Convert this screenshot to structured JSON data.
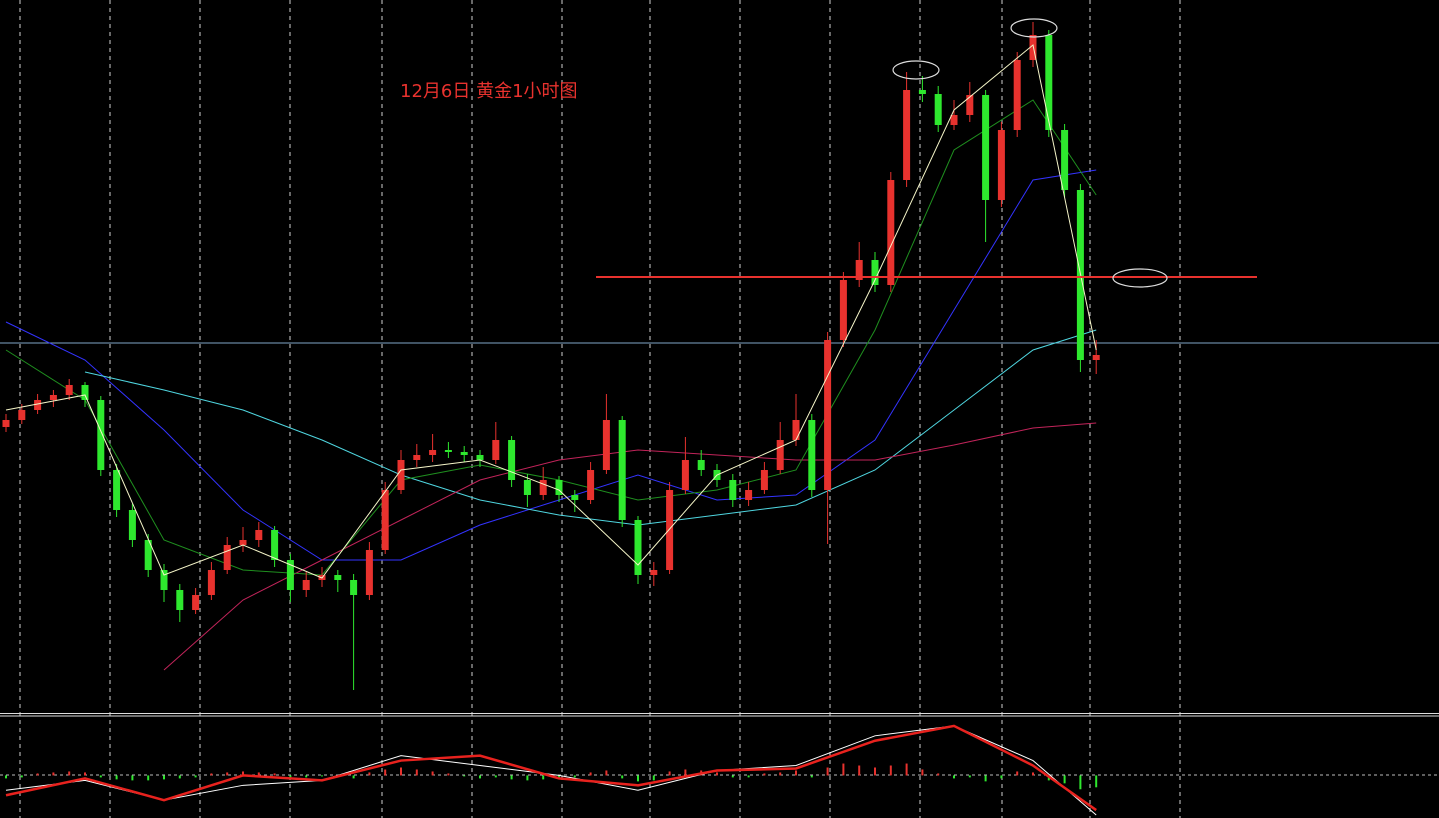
{
  "chart_data": {
    "type": "candlestick",
    "title": "12月6日 黄金1小时图",
    "title_color": "#e8322e",
    "ylim": [
      0,
      712
    ],
    "up_color": "#e8322e",
    "down_color": "#2ee82e",
    "ohlc": [
      [
        285,
        298,
        280,
        292
      ],
      [
        292,
        308,
        288,
        302
      ],
      [
        302,
        318,
        298,
        312
      ],
      [
        312,
        322,
        305,
        317
      ],
      [
        317,
        333,
        312,
        327
      ],
      [
        327,
        330,
        305,
        312
      ],
      [
        312,
        316,
        236,
        242
      ],
      [
        242,
        248,
        195,
        202
      ],
      [
        202,
        208,
        165,
        172
      ],
      [
        172,
        178,
        135,
        142
      ],
      [
        142,
        148,
        110,
        122
      ],
      [
        122,
        128,
        90,
        102
      ],
      [
        102,
        124,
        98,
        117
      ],
      [
        117,
        150,
        112,
        142
      ],
      [
        142,
        175,
        138,
        167
      ],
      [
        167,
        185,
        160,
        172
      ],
      [
        172,
        190,
        165,
        182
      ],
      [
        182,
        186,
        145,
        152
      ],
      [
        152,
        158,
        110,
        122
      ],
      [
        122,
        140,
        115,
        132
      ],
      [
        132,
        145,
        125,
        137
      ],
      [
        137,
        142,
        120,
        132
      ],
      [
        132,
        138,
        22,
        117
      ],
      [
        117,
        170,
        112,
        162
      ],
      [
        162,
        230,
        158,
        222
      ],
      [
        222,
        262,
        218,
        252
      ],
      [
        252,
        268,
        245,
        257
      ],
      [
        257,
        278,
        250,
        262
      ],
      [
        262,
        270,
        254,
        260
      ],
      [
        260,
        266,
        250,
        257
      ],
      [
        257,
        262,
        245,
        252
      ],
      [
        252,
        290,
        248,
        272
      ],
      [
        272,
        276,
        225,
        232
      ],
      [
        232,
        238,
        205,
        217
      ],
      [
        217,
        245,
        212,
        232
      ],
      [
        232,
        236,
        210,
        217
      ],
      [
        217,
        222,
        200,
        212
      ],
      [
        212,
        250,
        208,
        242
      ],
      [
        242,
        318,
        238,
        292
      ],
      [
        292,
        296,
        185,
        192
      ],
      [
        192,
        196,
        128,
        137
      ],
      [
        137,
        150,
        126,
        142
      ],
      [
        142,
        230,
        138,
        222
      ],
      [
        222,
        275,
        218,
        252
      ],
      [
        252,
        262,
        236,
        242
      ],
      [
        242,
        248,
        225,
        232
      ],
      [
        232,
        238,
        205,
        212
      ],
      [
        212,
        230,
        206,
        222
      ],
      [
        222,
        250,
        218,
        242
      ],
      [
        242,
        290,
        238,
        272
      ],
      [
        272,
        318,
        266,
        292
      ],
      [
        292,
        298,
        215,
        222
      ],
      [
        222,
        380,
        168,
        372
      ],
      [
        372,
        440,
        365,
        432
      ],
      [
        432,
        470,
        425,
        452
      ],
      [
        452,
        460,
        420,
        427
      ],
      [
        427,
        540,
        420,
        532
      ],
      [
        532,
        640,
        525,
        622
      ],
      [
        622,
        636,
        610,
        618
      ],
      [
        618,
        626,
        580,
        587
      ],
      [
        587,
        612,
        582,
        597
      ],
      [
        597,
        630,
        590,
        617
      ],
      [
        617,
        622,
        470,
        512
      ],
      [
        512,
        590,
        505,
        582
      ],
      [
        582,
        660,
        575,
        652
      ],
      [
        652,
        690,
        645,
        677
      ],
      [
        677,
        682,
        575,
        582
      ],
      [
        582,
        588,
        515,
        522
      ],
      [
        522,
        528,
        340,
        352
      ],
      [
        352,
        372,
        338,
        357
      ]
    ],
    "ma_x": [
      0,
      5,
      10,
      15,
      20,
      25,
      30,
      35,
      40,
      45,
      50,
      55,
      60,
      65,
      69
    ],
    "moving_averages": [
      {
        "color": "#3333ff",
        "values": [
          390,
          352,
          282,
          202,
          152,
          152,
          187,
          212,
          237,
          212,
          217,
          272,
          402,
          532,
          542
        ]
      },
      {
        "color": "#4fd6e0",
        "values": [
          null,
          340,
          322,
          302,
          272,
          237,
          212,
          197,
          187,
          197,
          207,
          242,
          302,
          362,
          382
        ]
      },
      {
        "color": "#c2245a",
        "values": [
          null,
          null,
          42,
          112,
          152,
          192,
          232,
          252,
          262,
          257,
          252,
          252,
          267,
          284,
          289
        ]
      },
      {
        "color": "#1f8f1f",
        "values": [
          362,
          312,
          172,
          142,
          137,
          232,
          247,
          232,
          212,
          222,
          242,
          382,
          562,
          612,
          517
        ]
      },
      {
        "color": "#f5f5c8",
        "values": [
          302,
          317,
          137,
          167,
          134,
          242,
          252,
          222,
          147,
          237,
          272,
          432,
          602,
          667,
          362
        ]
      }
    ],
    "level_line": {
      "value": 435,
      "color": "#e8322e"
    },
    "price_line": {
      "value": 369,
      "color": "#7fa6c8"
    },
    "macd": {
      "ylim": [
        -43,
        60
      ],
      "macd_line": {
        "color": "#ffffff",
        "values": [
          -15,
          -5,
          -25,
          -10,
          -5,
          20,
          10,
          0,
          -15,
          5,
          10,
          40,
          50,
          15,
          -40
        ]
      },
      "signal_line": {
        "color": "#e8221e",
        "values": [
          -20,
          -3,
          -25,
          0,
          -5,
          15,
          20,
          -3,
          -10,
          5,
          7,
          35,
          50,
          10,
          -35
        ]
      },
      "histogram": [
        -3,
        -2,
        2,
        3,
        4,
        3,
        -2,
        -4,
        -5,
        -5,
        -4,
        -3,
        -2,
        2,
        3,
        4,
        3,
        2,
        -2,
        -2,
        -1,
        -2,
        -3,
        3,
        6,
        8,
        6,
        4,
        2,
        -1,
        -3,
        -2,
        -4,
        -5,
        -4,
        -3,
        -2,
        3,
        5,
        -3,
        -6,
        -5,
        4,
        6,
        5,
        3,
        -2,
        -2,
        2,
        3,
        5,
        -2,
        8,
        12,
        10,
        8,
        10,
        12,
        6,
        2,
        -3,
        -2,
        -6,
        -3,
        4,
        3,
        -5,
        -8,
        -14,
        -12
      ]
    }
  }
}
